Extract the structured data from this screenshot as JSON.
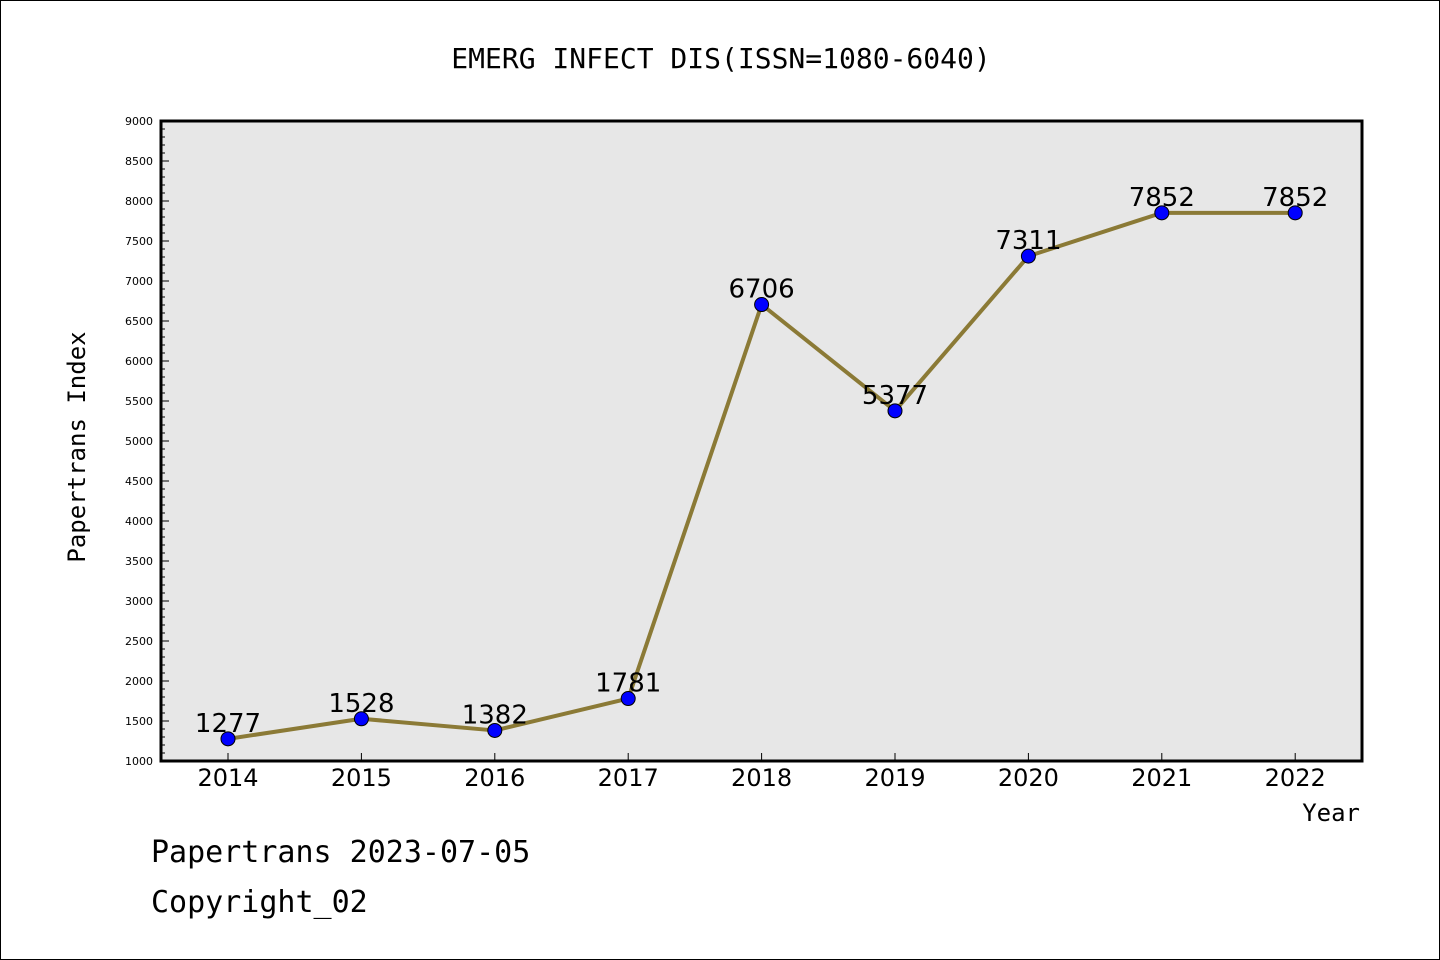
{
  "chart_data": {
    "type": "line",
    "title": "EMERG INFECT DIS(ISSN=1080-6040)",
    "xlabel": "Year",
    "ylabel": "Papertrans Index",
    "categories": [
      "2014",
      "2015",
      "2016",
      "2017",
      "2018",
      "2019",
      "2020",
      "2021",
      "2022"
    ],
    "values": [
      1277,
      1528,
      1382,
      1781,
      6706,
      5377,
      7311,
      7852,
      7852
    ],
    "data_labels": [
      "1277",
      "1528",
      "1382",
      "1781",
      "6706",
      "5377",
      "7311",
      "7852",
      "7852"
    ],
    "ylim": [
      1000,
      9000
    ],
    "yticks": [
      "1000",
      "1500",
      "2000",
      "2500",
      "3000",
      "3500",
      "4000",
      "4500",
      "5000",
      "5500",
      "6000",
      "6500",
      "7000",
      "7500",
      "8000",
      "8500",
      "9000"
    ],
    "grid": false,
    "line_color": "#8b7a36",
    "marker_color": "#0000ff",
    "plot_background": "#e7e7e7"
  },
  "footer": {
    "line1": "Papertrans 2023-07-05",
    "line2": "Copyright_02"
  }
}
